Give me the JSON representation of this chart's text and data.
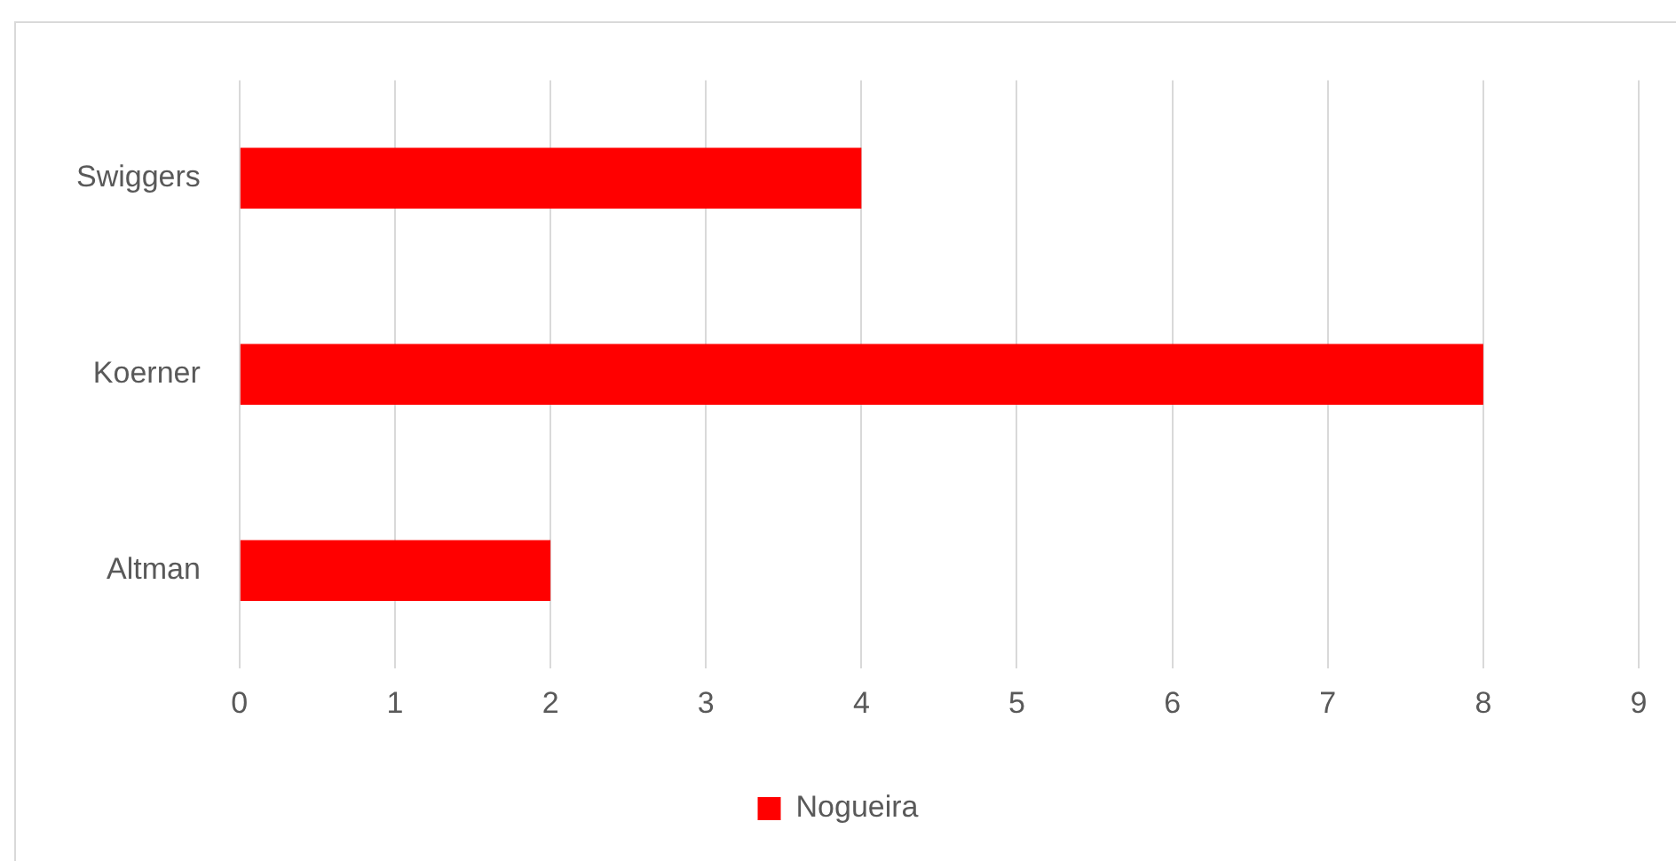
{
  "chart_data": {
    "type": "bar",
    "orientation": "horizontal",
    "categories": [
      "Swiggers",
      "Koerner",
      "Altman"
    ],
    "series": [
      {
        "name": "Nogueira",
        "color": "#ff0000",
        "values": [
          4,
          8,
          2
        ]
      }
    ],
    "xlim": [
      0,
      9
    ],
    "xticks": [
      0,
      1,
      2,
      3,
      4,
      5,
      6,
      7,
      8,
      9
    ],
    "grid": "x",
    "legend": "bottom"
  }
}
